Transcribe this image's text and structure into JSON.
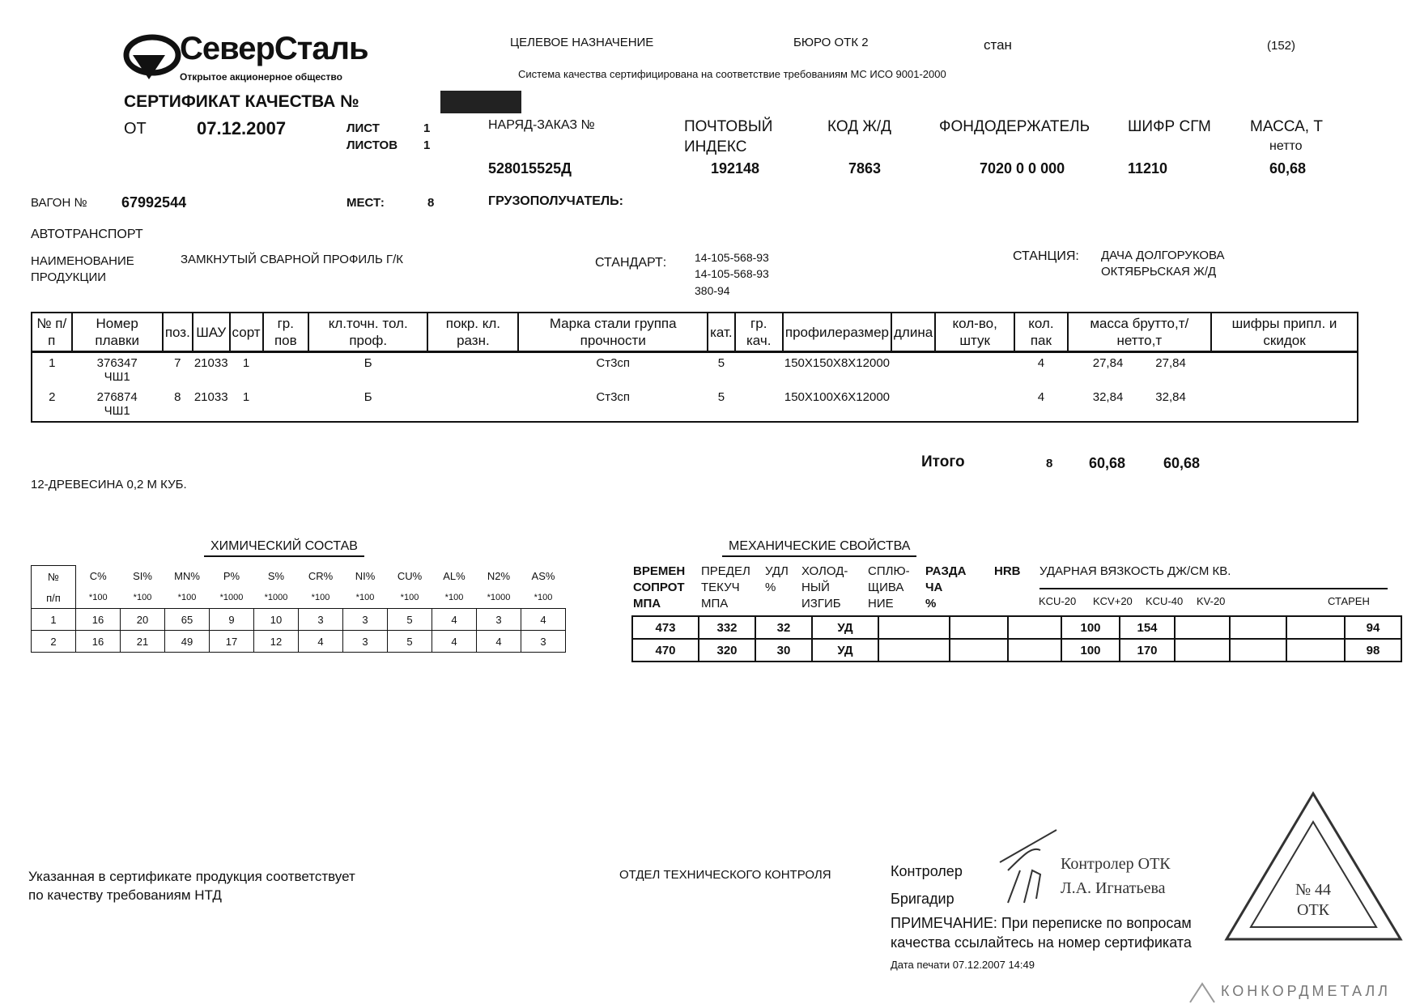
{
  "header": {
    "logo_text": "СеверСталь",
    "logo_subtitle": "Открытое акционерное общество",
    "purpose_label": "ЦЕЛЕВОЕ НАЗНАЧЕНИЕ",
    "otk_label": "БЮРО ОТК 2",
    "mill_label": "стан",
    "sheet_code": "(152)",
    "iso_note": "Система качества сертифицирована на соответствие требованиям МС ИСО 9001-2000",
    "title": "СЕРТИФИКАТ КАЧЕСТВА №",
    "from_label": "ОТ",
    "date": "07.12.2007",
    "sheet_label": "ЛИСТ",
    "sheet_value": "1",
    "sheets_label": "ЛИСТОВ",
    "sheets_value": "1"
  },
  "order": {
    "order_label": "НАРЯД-ЗАКАЗ №",
    "order_value": "528015525Д",
    "postal_label_1": "ПОЧТОВЫЙ",
    "postal_label_2": "ИНДЕКС",
    "postal_value": "192148",
    "rail_label": "КОД Ж/Д",
    "rail_value": "7863",
    "fund_label": "ФОНДОДЕРЖАТЕЛЬ",
    "fund_value": "7020 0 0 000",
    "cipher_label": "ШИФР СГМ",
    "cipher_value": "11210",
    "mass_label": "МАССА, Т",
    "mass_sub": "нетто",
    "mass_value": "60,68"
  },
  "shipment": {
    "wagon_label": "ВАГОН №",
    "wagon_value": "67992544",
    "places_label": "МЕСТ:",
    "places_value": "8",
    "consignee_label": "ГРУЗОПОЛУЧАТЕЛЬ:",
    "transport": "АВТОТРАНСПОРТ",
    "product_label_1": "НАИМЕНОВАНИЕ",
    "product_label_2": "ПРОДУКЦИИ",
    "product_value": "ЗАМКНУТЫЙ СВАРНОЙ ПРОФИЛЬ Г/К",
    "standard_label": "СТАНДАРТ:",
    "standards": [
      "14-105-568-93",
      "14-105-568-93",
      "380-94"
    ],
    "station_label": "СТАНЦИЯ:",
    "station_1": "ДАЧА ДОЛГОРУКОВА",
    "station_2": "ОКТЯБРЬСКАЯ Ж/Д"
  },
  "products": {
    "headers": [
      "№ п/п",
      "Номер плавки",
      "поз.",
      "ШАУ",
      "сорт",
      "гр. пов",
      "кл.точн. тол. проф.",
      "покр. кл. разн.",
      "Марка стали группа прочности",
      "кат.",
      "гр. кач.",
      "профилеразмер",
      "длина",
      "кол-во, штук",
      "кол. пак",
      "масса брутто,т/нетто,т",
      "шифры припл. и скидок"
    ],
    "rows": [
      {
        "n": "1",
        "heat": "376347",
        "heat2": "ЧШ1",
        "pos": "7",
        "shau": "21033",
        "sort": "1",
        "tol": "Б",
        "steel": "Ст3сп",
        "cat": "5",
        "size": "150X150X8X12000",
        "packs": "4",
        "gross": "27,84",
        "net": "27,84"
      },
      {
        "n": "2",
        "heat": "276874",
        "heat2": "ЧШ1",
        "pos": "8",
        "shau": "21033",
        "sort": "1",
        "tol": "Б",
        "steel": "Ст3сп",
        "cat": "5",
        "size": "150X100X6X12000",
        "packs": "4",
        "gross": "32,84",
        "net": "32,84"
      }
    ],
    "total_label": "Итого",
    "total_packs": "8",
    "total_gross": "60,68",
    "total_net": "60,68",
    "note": "12-ДРЕВЕСИНА 0,2 М КУБ."
  },
  "chemistry": {
    "title": "ХИМИЧЕСКИЙ СОСТАВ",
    "no_label_1": "№",
    "no_label_2": "п/п",
    "elements": [
      "C%",
      "SI%",
      "MN%",
      "P%",
      "S%",
      "CR%",
      "NI%",
      "CU%",
      "AL%",
      "N2%",
      "AS%"
    ],
    "multipliers": [
      "*100",
      "*100",
      "*100",
      "*1000",
      "*1000",
      "*100",
      "*100",
      "*100",
      "*100",
      "*1000",
      "*100"
    ],
    "rows": [
      [
        "1",
        "16",
        "20",
        "65",
        "9",
        "10",
        "3",
        "3",
        "5",
        "4",
        "3",
        "4"
      ],
      [
        "2",
        "16",
        "21",
        "49",
        "17",
        "12",
        "4",
        "3",
        "5",
        "4",
        "4",
        "3"
      ]
    ]
  },
  "mechanics": {
    "title": "МЕХАНИЧЕСКИЕ СВОЙСТВА",
    "headers": [
      [
        "ВРЕМЕН",
        "СОПРОТ",
        "МПА"
      ],
      [
        "ПРЕДЕЛ",
        "ТЕКУЧ",
        "МПА"
      ],
      [
        "УДЛ",
        "%",
        ""
      ],
      [
        "ХОЛОД-",
        "НЫЙ",
        "ИЗГИБ"
      ],
      [
        "СПЛЮ-",
        "ЩИВА",
        "НИЕ"
      ],
      [
        "РАЗДА",
        "ЧА",
        "%"
      ],
      [
        "HRB",
        "",
        ""
      ]
    ],
    "impact_title": "УДАРНАЯ ВЯЗКОСТЬ ДЖ/СМ КВ.",
    "impact_headers": [
      "KCU-20",
      "KCV+20",
      "KCU-40",
      "KV-20",
      "СТАРЕН"
    ],
    "rows": [
      [
        "473",
        "332",
        "32",
        "УД",
        "",
        "",
        "",
        "100",
        "154",
        "",
        "",
        "",
        "94"
      ],
      [
        "470",
        "320",
        "30",
        "УД",
        "",
        "",
        "",
        "100",
        "170",
        "",
        "",
        "",
        "98"
      ]
    ]
  },
  "footer": {
    "conformity_1": "Указанная в сертификате продукция соответствует",
    "conformity_2": "по качеству требованиям НТД",
    "department": "ОТДЕЛ ТЕХНИЧЕСКОГО КОНТРОЛЯ",
    "controller_label": "Контролер",
    "foreman_label": "Бригадир",
    "signature_1": "Контролер ОТК",
    "signature_2": "Л.А. Игнатьева",
    "note_label": "ПРИМЕЧАНИЕ:",
    "note_1": " При переписке по вопросам",
    "note_2": "качества ссылайтесь на номер сертификата",
    "print_date": "Дата печати 07.12.2007 14:49",
    "stamp_text": "№ 44 ОТК",
    "watermark": "КОНКОРДМЕТАЛЛ"
  }
}
